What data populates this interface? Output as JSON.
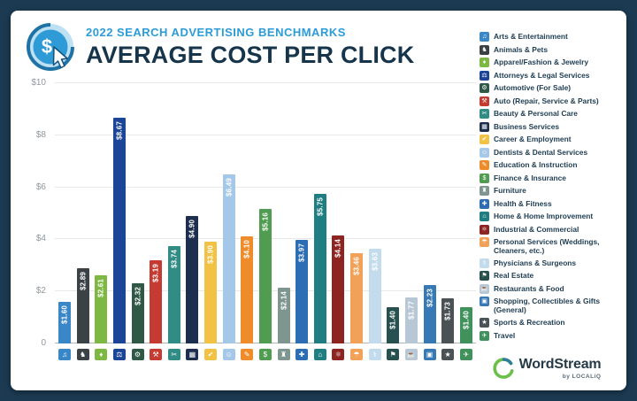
{
  "colors": {
    "page_background": "#1C3B53",
    "card_background": "#FFFFFF",
    "eyebrow_blue": "#2B9CD8",
    "title_navy": "#16344A"
  },
  "header": {
    "eyebrow": "2022 SEARCH ADVERTISING BENCHMARKS",
    "title": "AVERAGE COST PER CLICK"
  },
  "footer": {
    "brand": "WordStream",
    "sub_brand": "by LOCALiQ"
  },
  "chart_data": {
    "type": "bar",
    "title": "AVERAGE COST PER CLICK",
    "subtitle": "2022 SEARCH ADVERTISING BENCHMARKS",
    "ylabel": "",
    "ylim": [
      0,
      10
    ],
    "grid": true,
    "legend_position": "right",
    "value_label_style": "white vertical text inside bar",
    "yticks": [
      {
        "value": 0,
        "label": "0"
      },
      {
        "value": 2,
        "label": "$2"
      },
      {
        "value": 4,
        "label": "$4"
      },
      {
        "value": 6,
        "label": "$6"
      },
      {
        "value": 8,
        "label": "$8"
      },
      {
        "value": 10,
        "label": "$10"
      }
    ],
    "categories": [
      {
        "name": "Arts & Entertainment",
        "value": 1.6,
        "label": "$1.60",
        "color": "#3A87C8",
        "icon": "♫",
        "icon_name": "music-note-icon"
      },
      {
        "name": "Animals & Pets",
        "value": 2.89,
        "label": "$2.89",
        "color": "#3B4245",
        "icon": "♞",
        "icon_name": "paw-icon"
      },
      {
        "name": "Apparel/Fashion & Jewelry",
        "value": 2.61,
        "label": "$2.61",
        "color": "#7DB843",
        "icon": "♦",
        "icon_name": "diamond-icon"
      },
      {
        "name": "Attorneys & Legal Services",
        "value": 8.67,
        "label": "$8.67",
        "color": "#1C4598",
        "icon": "⚖",
        "icon_name": "scales-icon"
      },
      {
        "name": "Automotive (For Sale)",
        "value": 2.32,
        "label": "$2.32",
        "color": "#2F5847",
        "icon": "⚙",
        "icon_name": "car-icon"
      },
      {
        "name": "Auto (Repair, Service & Parts)",
        "value": 3.19,
        "label": "$3.19",
        "color": "#C53A31",
        "icon": "⚒",
        "icon_name": "wrench-icon"
      },
      {
        "name": "Beauty & Personal Care",
        "value": 3.74,
        "label": "$3.74",
        "color": "#318C85",
        "icon": "✂",
        "icon_name": "scissors-icon"
      },
      {
        "name": "Business Services",
        "value": 4.9,
        "label": "$4.90",
        "color": "#1D2E4F",
        "icon": "▦",
        "icon_name": "building-icon"
      },
      {
        "name": "Career & Employment",
        "value": 3.9,
        "label": "$3.90",
        "color": "#F2C245",
        "icon": "✔",
        "icon_name": "briefcase-icon"
      },
      {
        "name": "Dentists & Dental Services",
        "value": 6.49,
        "label": "$6.49",
        "color": "#A6C8E8",
        "icon": "☺",
        "icon_name": "tooth-icon"
      },
      {
        "name": "Education & Instruction",
        "value": 4.1,
        "label": "$4.10",
        "color": "#EE8C2B",
        "icon": "✎",
        "icon_name": "pencil-icon"
      },
      {
        "name": "Finance & Insurance",
        "value": 5.16,
        "label": "$5.16",
        "color": "#509C50",
        "icon": "$",
        "icon_name": "dollar-icon"
      },
      {
        "name": "Furniture",
        "value": 2.14,
        "label": "$2.14",
        "color": "#7F9590",
        "icon": "♜",
        "icon_name": "furniture-icon"
      },
      {
        "name": "Health & Fitness",
        "value": 3.97,
        "label": "$3.97",
        "color": "#2D6DB4",
        "icon": "✚",
        "icon_name": "health-cross-icon"
      },
      {
        "name": "Home & Home Improvement",
        "value": 5.75,
        "label": "$5.75",
        "color": "#1F7E81",
        "icon": "⌂",
        "icon_name": "house-icon"
      },
      {
        "name": "Industrial & Commercial",
        "value": 4.14,
        "label": "$4.14",
        "color": "#8D2421",
        "icon": "⚛",
        "icon_name": "factory-icon"
      },
      {
        "name": "Personal Services (Weddings, Cleaners, etc.)",
        "value": 3.46,
        "label": "$3.46",
        "color": "#F2A158",
        "icon": "☂",
        "icon_name": "umbrella-icon"
      },
      {
        "name": "Physicians & Surgeons",
        "value": 3.63,
        "label": "$3.63",
        "color": "#C2DCEE",
        "icon": "⚕",
        "icon_name": "medical-icon"
      },
      {
        "name": "Real Estate",
        "value": 1.4,
        "label": "$1.40",
        "color": "#27514E",
        "icon": "⚑",
        "icon_name": "sign-flag-icon"
      },
      {
        "name": "Restaurants & Food",
        "value": 1.77,
        "label": "$1.77",
        "color": "#B8C7D6",
        "icon": "☕",
        "icon_name": "food-icon"
      },
      {
        "name": "Shopping, Collectibles & Gifts (General)",
        "value": 2.23,
        "label": "$2.23",
        "color": "#3679B5",
        "icon": "▣",
        "icon_name": "gift-icon"
      },
      {
        "name": "Sports & Recreation",
        "value": 1.73,
        "label": "$1.73",
        "color": "#4B5256",
        "icon": "★",
        "icon_name": "sports-icon"
      },
      {
        "name": "Travel",
        "value": 1.4,
        "label": "$1.40",
        "color": "#41915C",
        "icon": "✈",
        "icon_name": "airplane-icon"
      }
    ]
  }
}
